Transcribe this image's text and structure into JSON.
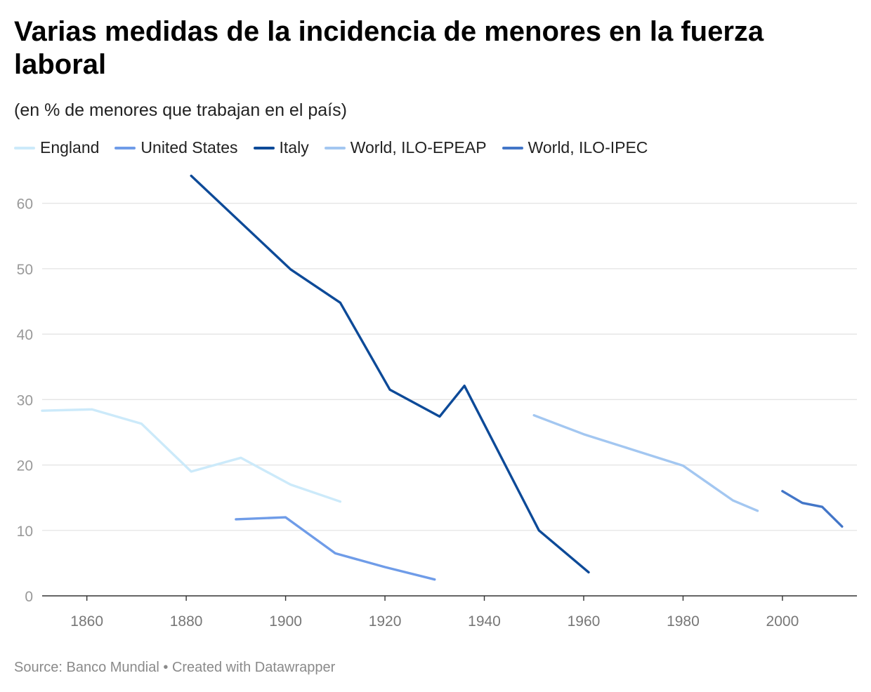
{
  "title": "Varias medidas de la incidencia de menores en la fuerza laboral",
  "subtitle": "(en % de menores que trabajan en el país)",
  "footer": {
    "source": "Source: Banco Mundial",
    "separator": "•",
    "credit": "Created with Datawrapper"
  },
  "chart_data": {
    "type": "line",
    "title": "Varias medidas de la incidencia de menores en la fuerza laboral",
    "subtitle": "(en % de menores que trabajan en el país)",
    "xlabel": "",
    "ylabel": "",
    "xlim": [
      1851,
      2015
    ],
    "ylim": [
      0,
      65
    ],
    "yticks": [
      0,
      10,
      20,
      30,
      40,
      50,
      60
    ],
    "xticks": [
      1860,
      1880,
      1900,
      1920,
      1940,
      1960,
      1980,
      2000
    ],
    "grid": true,
    "legend_position": "top-left",
    "series": [
      {
        "name": "England",
        "color": "#cceafa",
        "points": [
          [
            1851,
            28.3
          ],
          [
            1861,
            28.5
          ],
          [
            1871,
            26.3
          ],
          [
            1881,
            19.0
          ],
          [
            1891,
            21.1
          ],
          [
            1901,
            17.0
          ],
          [
            1911,
            14.4
          ]
        ]
      },
      {
        "name": "United States",
        "color": "#6f9ce8",
        "points": [
          [
            1890,
            11.7
          ],
          [
            1900,
            12.0
          ],
          [
            1910,
            6.5
          ],
          [
            1920,
            4.4
          ],
          [
            1930,
            2.5
          ]
        ]
      },
      {
        "name": "Italy",
        "color": "#0d4a98",
        "points": [
          [
            1881,
            64.2
          ],
          [
            1901,
            49.9
          ],
          [
            1911,
            44.8
          ],
          [
            1921,
            31.5
          ],
          [
            1931,
            27.4
          ],
          [
            1936,
            32.1
          ],
          [
            1951,
            10.0
          ],
          [
            1961,
            3.6
          ]
        ]
      },
      {
        "name": "World, ILO-EPEAP",
        "color": "#a3c7f1",
        "points": [
          [
            1950,
            27.6
          ],
          [
            1960,
            24.7
          ],
          [
            1970,
            22.3
          ],
          [
            1980,
            19.9
          ],
          [
            1990,
            14.6
          ],
          [
            1995,
            13.0
          ]
        ]
      },
      {
        "name": "World, ILO-IPEC",
        "color": "#4376c8",
        "points": [
          [
            2000,
            16.0
          ],
          [
            2004,
            14.2
          ],
          [
            2008,
            13.6
          ],
          [
            2012,
            10.6
          ]
        ]
      }
    ]
  }
}
